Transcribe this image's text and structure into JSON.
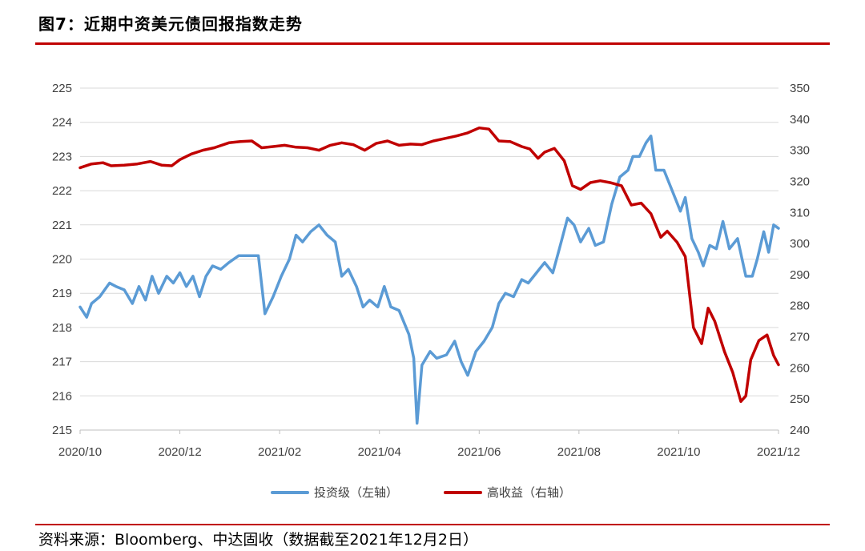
{
  "header": {
    "title": "图7：近期中资美元债回报指数走势"
  },
  "footer": {
    "source": "资料来源：Bloomberg、中达固收（数据截至2021年12月2日）"
  },
  "colors": {
    "rule": "#c00000",
    "investment_grade": "#5b9bd5",
    "high_yield": "#c00000",
    "grid": "#d9d9d9"
  },
  "chart_data": {
    "type": "line",
    "title": "图7：近期中资美元债回报指数走势",
    "x_tick_labels": [
      "2020/10",
      "2020/12",
      "2021/02",
      "2021/04",
      "2021/06",
      "2021/08",
      "2021/10",
      "2021/12"
    ],
    "x_range": [
      "2020-10-01",
      "2021-12-02"
    ],
    "y_left": {
      "range": [
        215,
        225
      ],
      "ticks": [
        215,
        216,
        217,
        218,
        219,
        220,
        221,
        222,
        223,
        224,
        225
      ]
    },
    "y_right": {
      "range": [
        240,
        350
      ],
      "ticks": [
        240,
        250,
        260,
        270,
        280,
        290,
        300,
        310,
        320,
        330,
        340,
        350
      ]
    },
    "grid": "horizontal",
    "legend_position": "bottom",
    "series": [
      {
        "name": "投资级（左轴）",
        "axis": "left",
        "color": "#5b9bd5",
        "points": [
          [
            "2020-10-01",
            218.6
          ],
          [
            "2020-10-05",
            218.3
          ],
          [
            "2020-10-08",
            218.7
          ],
          [
            "2020-10-13",
            218.9
          ],
          [
            "2020-10-19",
            219.3
          ],
          [
            "2020-10-23",
            219.2
          ],
          [
            "2020-10-28",
            219.1
          ],
          [
            "2020-11-02",
            218.7
          ],
          [
            "2020-11-06",
            219.2
          ],
          [
            "2020-11-10",
            218.8
          ],
          [
            "2020-11-14",
            219.5
          ],
          [
            "2020-11-18",
            219.0
          ],
          [
            "2020-11-23",
            219.5
          ],
          [
            "2020-11-27",
            219.3
          ],
          [
            "2020-12-01",
            219.6
          ],
          [
            "2020-12-05",
            219.2
          ],
          [
            "2020-12-09",
            219.5
          ],
          [
            "2020-12-13",
            218.9
          ],
          [
            "2020-12-17",
            219.5
          ],
          [
            "2020-12-21",
            219.8
          ],
          [
            "2020-12-26",
            219.7
          ],
          [
            "2020-12-31",
            219.9
          ],
          [
            "2021-01-06",
            220.1
          ],
          [
            "2021-01-12",
            220.1
          ],
          [
            "2021-01-18",
            220.1
          ],
          [
            "2021-01-22",
            218.4
          ],
          [
            "2021-01-27",
            218.9
          ],
          [
            "2021-02-01",
            219.5
          ],
          [
            "2021-02-06",
            220.0
          ],
          [
            "2021-02-10",
            220.7
          ],
          [
            "2021-02-14",
            220.5
          ],
          [
            "2021-02-19",
            220.8
          ],
          [
            "2021-02-24",
            221.0
          ],
          [
            "2021-03-01",
            220.7
          ],
          [
            "2021-03-06",
            220.5
          ],
          [
            "2021-03-10",
            219.5
          ],
          [
            "2021-03-14",
            219.7
          ],
          [
            "2021-03-19",
            219.2
          ],
          [
            "2021-03-23",
            218.6
          ],
          [
            "2021-03-27",
            218.8
          ],
          [
            "2021-04-01",
            218.6
          ],
          [
            "2021-04-05",
            219.2
          ],
          [
            "2021-04-09",
            218.6
          ],
          [
            "2021-04-14",
            218.5
          ],
          [
            "2021-04-20",
            217.8
          ],
          [
            "2021-04-23",
            217.1
          ],
          [
            "2021-04-25",
            215.2
          ],
          [
            "2021-04-28",
            216.9
          ],
          [
            "2021-05-03",
            217.3
          ],
          [
            "2021-05-07",
            217.1
          ],
          [
            "2021-05-13",
            217.2
          ],
          [
            "2021-05-18",
            217.6
          ],
          [
            "2021-05-22",
            217.0
          ],
          [
            "2021-05-26",
            216.6
          ],
          [
            "2021-05-31",
            217.3
          ],
          [
            "2021-06-05",
            217.6
          ],
          [
            "2021-06-10",
            218.0
          ],
          [
            "2021-06-14",
            218.7
          ],
          [
            "2021-06-18",
            219.0
          ],
          [
            "2021-06-23",
            218.9
          ],
          [
            "2021-06-28",
            219.4
          ],
          [
            "2021-07-02",
            219.3
          ],
          [
            "2021-07-07",
            219.6
          ],
          [
            "2021-07-12",
            219.9
          ],
          [
            "2021-07-17",
            219.6
          ],
          [
            "2021-07-21",
            220.3
          ],
          [
            "2021-07-26",
            221.2
          ],
          [
            "2021-07-30",
            221.0
          ],
          [
            "2021-08-03",
            220.5
          ],
          [
            "2021-08-08",
            220.9
          ],
          [
            "2021-08-12",
            220.4
          ],
          [
            "2021-08-17",
            220.5
          ],
          [
            "2021-08-22",
            221.6
          ],
          [
            "2021-08-27",
            222.4
          ],
          [
            "2021-09-01",
            222.6
          ],
          [
            "2021-09-04",
            223.0
          ],
          [
            "2021-09-08",
            223.0
          ],
          [
            "2021-09-12",
            223.4
          ],
          [
            "2021-09-15",
            223.6
          ],
          [
            "2021-09-18",
            222.6
          ],
          [
            "2021-09-23",
            222.6
          ],
          [
            "2021-09-28",
            222.0
          ],
          [
            "2021-10-03",
            221.4
          ],
          [
            "2021-10-06",
            221.8
          ],
          [
            "2021-10-10",
            220.6
          ],
          [
            "2021-10-14",
            220.2
          ],
          [
            "2021-10-17",
            219.8
          ],
          [
            "2021-10-21",
            220.4
          ],
          [
            "2021-10-25",
            220.3
          ],
          [
            "2021-10-29",
            221.1
          ],
          [
            "2021-11-02",
            220.3
          ],
          [
            "2021-11-07",
            220.6
          ],
          [
            "2021-11-12",
            219.5
          ],
          [
            "2021-11-16",
            219.5
          ],
          [
            "2021-11-19",
            220.0
          ],
          [
            "2021-11-23",
            220.8
          ],
          [
            "2021-11-26",
            220.2
          ],
          [
            "2021-11-29",
            221.0
          ],
          [
            "2021-12-02",
            220.9
          ]
        ]
      },
      {
        "name": "高收益（右轴）",
        "axis": "right",
        "color": "#c00000",
        "points": [
          [
            "2020-10-01",
            324.4
          ],
          [
            "2020-10-08",
            325.6
          ],
          [
            "2020-10-15",
            326.0
          ],
          [
            "2020-10-20",
            325.0
          ],
          [
            "2020-10-28",
            325.2
          ],
          [
            "2020-11-05",
            325.6
          ],
          [
            "2020-11-13",
            326.4
          ],
          [
            "2020-11-20",
            325.2
          ],
          [
            "2020-11-26",
            325.0
          ],
          [
            "2020-12-01",
            327.0
          ],
          [
            "2020-12-08",
            328.8
          ],
          [
            "2020-12-15",
            330.0
          ],
          [
            "2020-12-22",
            330.8
          ],
          [
            "2020-12-31",
            332.4
          ],
          [
            "2021-01-07",
            332.8
          ],
          [
            "2021-01-14",
            333.0
          ],
          [
            "2021-01-20",
            330.8
          ],
          [
            "2021-01-27",
            331.2
          ],
          [
            "2021-02-03",
            331.6
          ],
          [
            "2021-02-10",
            331.0
          ],
          [
            "2021-02-17",
            330.8
          ],
          [
            "2021-02-24",
            330.0
          ],
          [
            "2021-03-03",
            331.6
          ],
          [
            "2021-03-10",
            332.4
          ],
          [
            "2021-03-17",
            331.8
          ],
          [
            "2021-03-24",
            330.0
          ],
          [
            "2021-03-31",
            332.2
          ],
          [
            "2021-04-07",
            333.0
          ],
          [
            "2021-04-14",
            331.6
          ],
          [
            "2021-04-21",
            332.0
          ],
          [
            "2021-04-28",
            331.8
          ],
          [
            "2021-05-05",
            333.0
          ],
          [
            "2021-05-12",
            333.8
          ],
          [
            "2021-05-19",
            334.6
          ],
          [
            "2021-05-26",
            335.6
          ],
          [
            "2021-06-02",
            337.2
          ],
          [
            "2021-06-08",
            336.8
          ],
          [
            "2021-06-14",
            333.0
          ],
          [
            "2021-06-21",
            332.8
          ],
          [
            "2021-06-28",
            331.2
          ],
          [
            "2021-07-03",
            330.4
          ],
          [
            "2021-07-08",
            327.4
          ],
          [
            "2021-07-12",
            329.4
          ],
          [
            "2021-07-18",
            330.6
          ],
          [
            "2021-07-24",
            326.6
          ],
          [
            "2021-07-29",
            318.6
          ],
          [
            "2021-08-03",
            317.4
          ],
          [
            "2021-08-09",
            319.6
          ],
          [
            "2021-08-15",
            320.2
          ],
          [
            "2021-08-21",
            319.6
          ],
          [
            "2021-08-28",
            318.6
          ],
          [
            "2021-09-03",
            312.4
          ],
          [
            "2021-09-09",
            313.0
          ],
          [
            "2021-09-15",
            309.6
          ],
          [
            "2021-09-21",
            302.0
          ],
          [
            "2021-09-25",
            304.0
          ],
          [
            "2021-10-01",
            300.4
          ],
          [
            "2021-10-06",
            295.8
          ],
          [
            "2021-10-11",
            273.0
          ],
          [
            "2021-10-16",
            267.8
          ],
          [
            "2021-10-20",
            279.2
          ],
          [
            "2021-10-24",
            275.0
          ],
          [
            "2021-10-30",
            265.2
          ],
          [
            "2021-11-04",
            258.6
          ],
          [
            "2021-11-09",
            249.2
          ],
          [
            "2021-11-12",
            251.0
          ],
          [
            "2021-11-15",
            262.6
          ],
          [
            "2021-11-20",
            268.8
          ],
          [
            "2021-11-25",
            270.6
          ],
          [
            "2021-11-29",
            264.0
          ],
          [
            "2021-12-02",
            261.0
          ]
        ]
      }
    ]
  }
}
